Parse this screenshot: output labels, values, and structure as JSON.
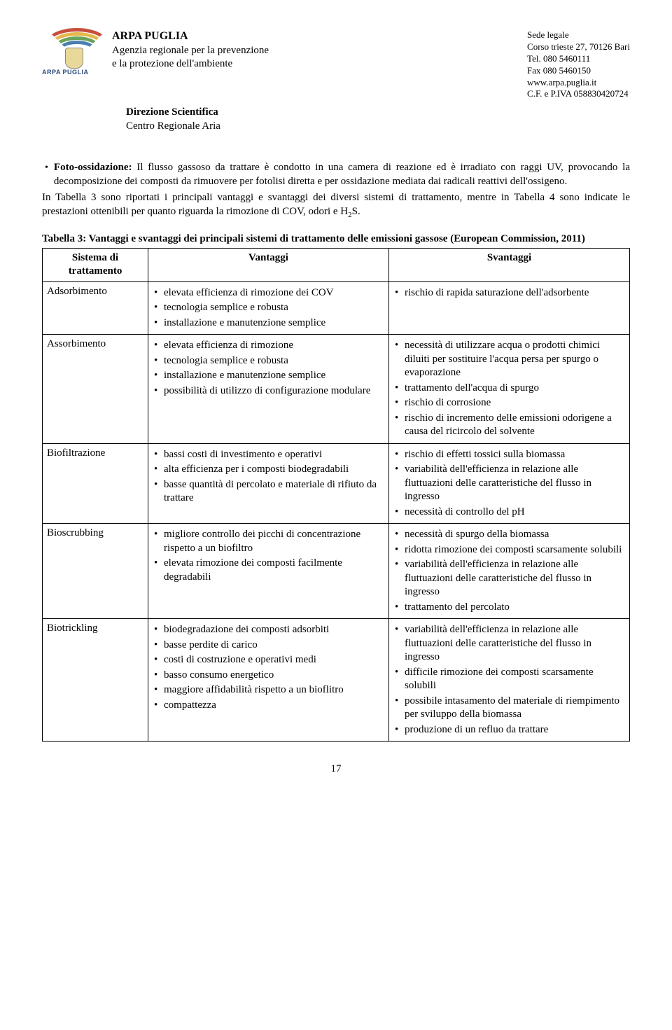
{
  "header": {
    "logo_text": "ARPA PUGLIA",
    "org_name": "ARPA PUGLIA",
    "org_line1": "Agenzia regionale per la prevenzione",
    "org_line2": "e la protezione dell'ambiente",
    "sede_label": "Sede legale",
    "address": "Corso trieste 27, 70126 Bari",
    "tel": "Tel. 080 5460111",
    "fax": "Fax 080 5460150",
    "web": "www.arpa.puglia.it",
    "piva": "C.F. e P.IVA 058830420724",
    "direzione1": "Direzione Scientifica",
    "direzione2": "Centro Regionale Aria"
  },
  "body": {
    "bullet_label": "Foto-ossidazione:",
    "bullet_text": " Il flusso gassoso da trattare è condotto in una camera di reazione ed è irradiato con raggi UV, provocando la decomposizione dei composti da rimuovere per fotolisi diretta e per ossidazione mediata dai radicali reattivi dell'ossigeno.",
    "para1": "In Tabella 3 sono riportati i principali vantaggi e svantaggi dei diversi sistemi di trattamento, mentre in Tabella 4 sono indicate le prestazioni ottenibili per quanto riguarda la rimozione di COV, odori e H",
    "para1_sub": "2",
    "para1_tail": "S."
  },
  "table": {
    "caption": "Tabella 3: Vantaggi e svantaggi dei principali sistemi di trattamento delle emissioni gassose (European Commission, 2011)",
    "h_sys": "Sistema di trattamento",
    "h_adv": "Vantaggi",
    "h_dis": "Svantaggi",
    "rows": [
      {
        "sys": "Adsorbimento",
        "adv": [
          "elevata efficienza di rimozione dei COV",
          "tecnologia semplice e robusta",
          "installazione e manutenzione semplice"
        ],
        "dis": [
          "rischio di rapida saturazione dell'adsorbente"
        ]
      },
      {
        "sys": "Assorbimento",
        "adv": [
          "elevata efficienza di rimozione",
          "tecnologia semplice e robusta",
          "installazione e manutenzione semplice",
          "possibilità di utilizzo di configurazione modulare"
        ],
        "dis": [
          "necessità di utilizzare acqua o prodotti chimici diluiti per sostituire l'acqua persa per spurgo o evaporazione",
          "trattamento dell'acqua di spurgo",
          "rischio di corrosione",
          "rischio di incremento delle emissioni odorigene a causa del ricircolo del solvente"
        ]
      },
      {
        "sys": "Biofiltrazione",
        "adv": [
          "bassi costi di investimento e operativi",
          "alta efficienza per i composti biodegradabili",
          "basse quantità di percolato e materiale di rifiuto da trattare"
        ],
        "dis": [
          "rischio di effetti tossici sulla biomassa",
          "variabilità dell'efficienza in relazione alle fluttuazioni delle caratteristiche del flusso in ingresso",
          "necessità di controllo del pH"
        ]
      },
      {
        "sys": "Bioscrubbing",
        "adv": [
          "migliore controllo dei picchi di concentrazione rispetto a un biofiltro",
          "elevata rimozione dei composti facilmente degradabili"
        ],
        "dis": [
          "necessità di spurgo della biomassa",
          "ridotta rimozione dei composti scarsamente solubili",
          "variabilità dell'efficienza in relazione alle fluttuazioni delle caratteristiche del flusso in ingresso",
          "trattamento del percolato"
        ]
      },
      {
        "sys": "Biotrickling",
        "adv": [
          "biodegradazione dei composti adsorbiti",
          "basse perdite di carico",
          "costi di costruzione e operativi medi",
          "basso consumo energetico",
          "maggiore affidabilità rispetto a un bioflitro",
          "compattezza"
        ],
        "dis": [
          "variabilità dell'efficienza in relazione alle fluttuazioni delle caratteristiche del flusso in ingresso",
          "difficile rimozione dei composti scarsamente solubili",
          "possibile intasamento del materiale di riempimento per sviluppo della biomassa",
          "produzione di un refluo da trattare"
        ]
      }
    ]
  },
  "page_number": "17"
}
